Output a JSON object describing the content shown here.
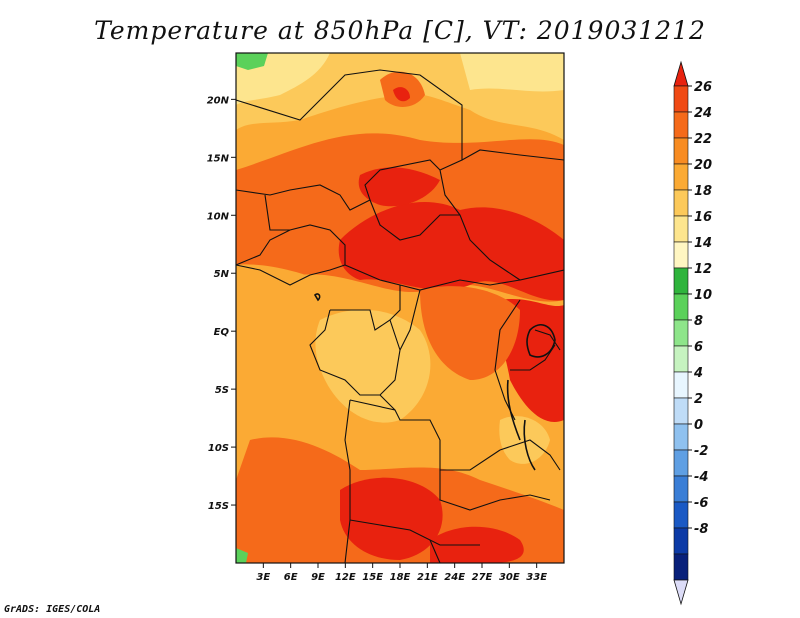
{
  "title": "Temperature at 850hPa [C], VT: 2019031212",
  "footer": "GrADS: IGES/COLA",
  "map": {
    "lon_range": [
      0,
      36
    ],
    "lat_range": [
      -20,
      24
    ],
    "lon_ticks": [
      "3E",
      "6E",
      "9E",
      "12E",
      "15E",
      "18E",
      "21E",
      "24E",
      "27E",
      "30E",
      "33E"
    ],
    "lon_values": [
      3,
      6,
      9,
      12,
      15,
      18,
      21,
      24,
      27,
      30,
      33
    ],
    "lat_ticks": [
      "20N",
      "15N",
      "10N",
      "5N",
      "EQ",
      "5S",
      "10S",
      "15S"
    ],
    "lat_values": [
      20,
      15,
      10,
      5,
      0,
      -5,
      -10,
      -15
    ]
  },
  "colorbar": {
    "labels": [
      "26",
      "24",
      "22",
      "20",
      "18",
      "16",
      "14",
      "12",
      "10",
      "8",
      "6",
      "4",
      "2",
      "0",
      "-2",
      "-4",
      "-6",
      "-8"
    ],
    "colors": [
      "#e8220f",
      "#f04a14",
      "#f56a1a",
      "#f88c22",
      "#fbaa34",
      "#fcc95a",
      "#fde58e",
      "#fff6c2",
      "#2fb43c",
      "#5bd15a",
      "#8ee58a",
      "#c6f3c0",
      "#e8f6ff",
      "#bfdcf7",
      "#8fc1ef",
      "#5f9fe3",
      "#3a7ed6",
      "#1a59c4",
      "#0c3aa6",
      "#08207a",
      "#dcdcf7"
    ]
  }
}
